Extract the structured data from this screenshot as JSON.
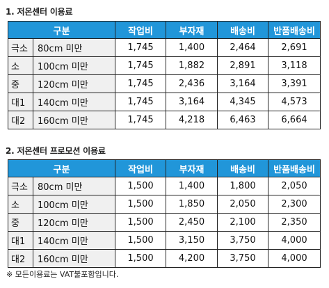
{
  "section1": {
    "title": "1. 저온센터 이용료",
    "headers": [
      "구분",
      "작업비",
      "부자재",
      "배송비",
      "반품배송비"
    ],
    "rows": [
      {
        "code": "극소",
        "range": "80cm 미만",
        "work": "1,745",
        "material": "1,400",
        "shipping": "2,464",
        "return_shipping": "2,691"
      },
      {
        "code": "소",
        "range": "100cm 미만",
        "work": "1,745",
        "material": "1,882",
        "shipping": "2,891",
        "return_shipping": "3,118"
      },
      {
        "code": "중",
        "range": "120cm 미만",
        "work": "1,745",
        "material": "2,436",
        "shipping": "3,164",
        "return_shipping": "3,391"
      },
      {
        "code": "대1",
        "range": "140cm 미만",
        "work": "1,745",
        "material": "3,164",
        "shipping": "4,345",
        "return_shipping": "4,573"
      },
      {
        "code": "대2",
        "range": "160cm 미만",
        "work": "1,745",
        "material": "4,218",
        "shipping": "6,463",
        "return_shipping": "6,664"
      }
    ]
  },
  "section2": {
    "title": "2. 저온센터 프로모션 이용료",
    "headers": [
      "구분",
      "작업비",
      "부자재",
      "배송비",
      "반품배송비"
    ],
    "rows": [
      {
        "code": "극소",
        "range": "80cm 미만",
        "work": "1,500",
        "material": "1,400",
        "shipping": "1,800",
        "return_shipping": "2,050"
      },
      {
        "code": "소",
        "range": "100cm 미만",
        "work": "1,500",
        "material": "1,850",
        "shipping": "2,050",
        "return_shipping": "2,300"
      },
      {
        "code": "중",
        "range": "120cm 미만",
        "work": "1,500",
        "material": "2,450",
        "shipping": "2,100",
        "return_shipping": "2,350"
      },
      {
        "code": "대1",
        "range": "140cm 미만",
        "work": "1,500",
        "material": "3,150",
        "shipping": "3,750",
        "return_shipping": "4,000"
      },
      {
        "code": "대2",
        "range": "160cm 미만",
        "work": "1,500",
        "material": "4,200",
        "shipping": "3,750",
        "return_shipping": "4,000"
      }
    ]
  },
  "note": "※ 모든이용료는 VAT불포함입니다.",
  "colors": {
    "header_bg": "#2196d9",
    "size_bg": "#f0f0f0"
  }
}
